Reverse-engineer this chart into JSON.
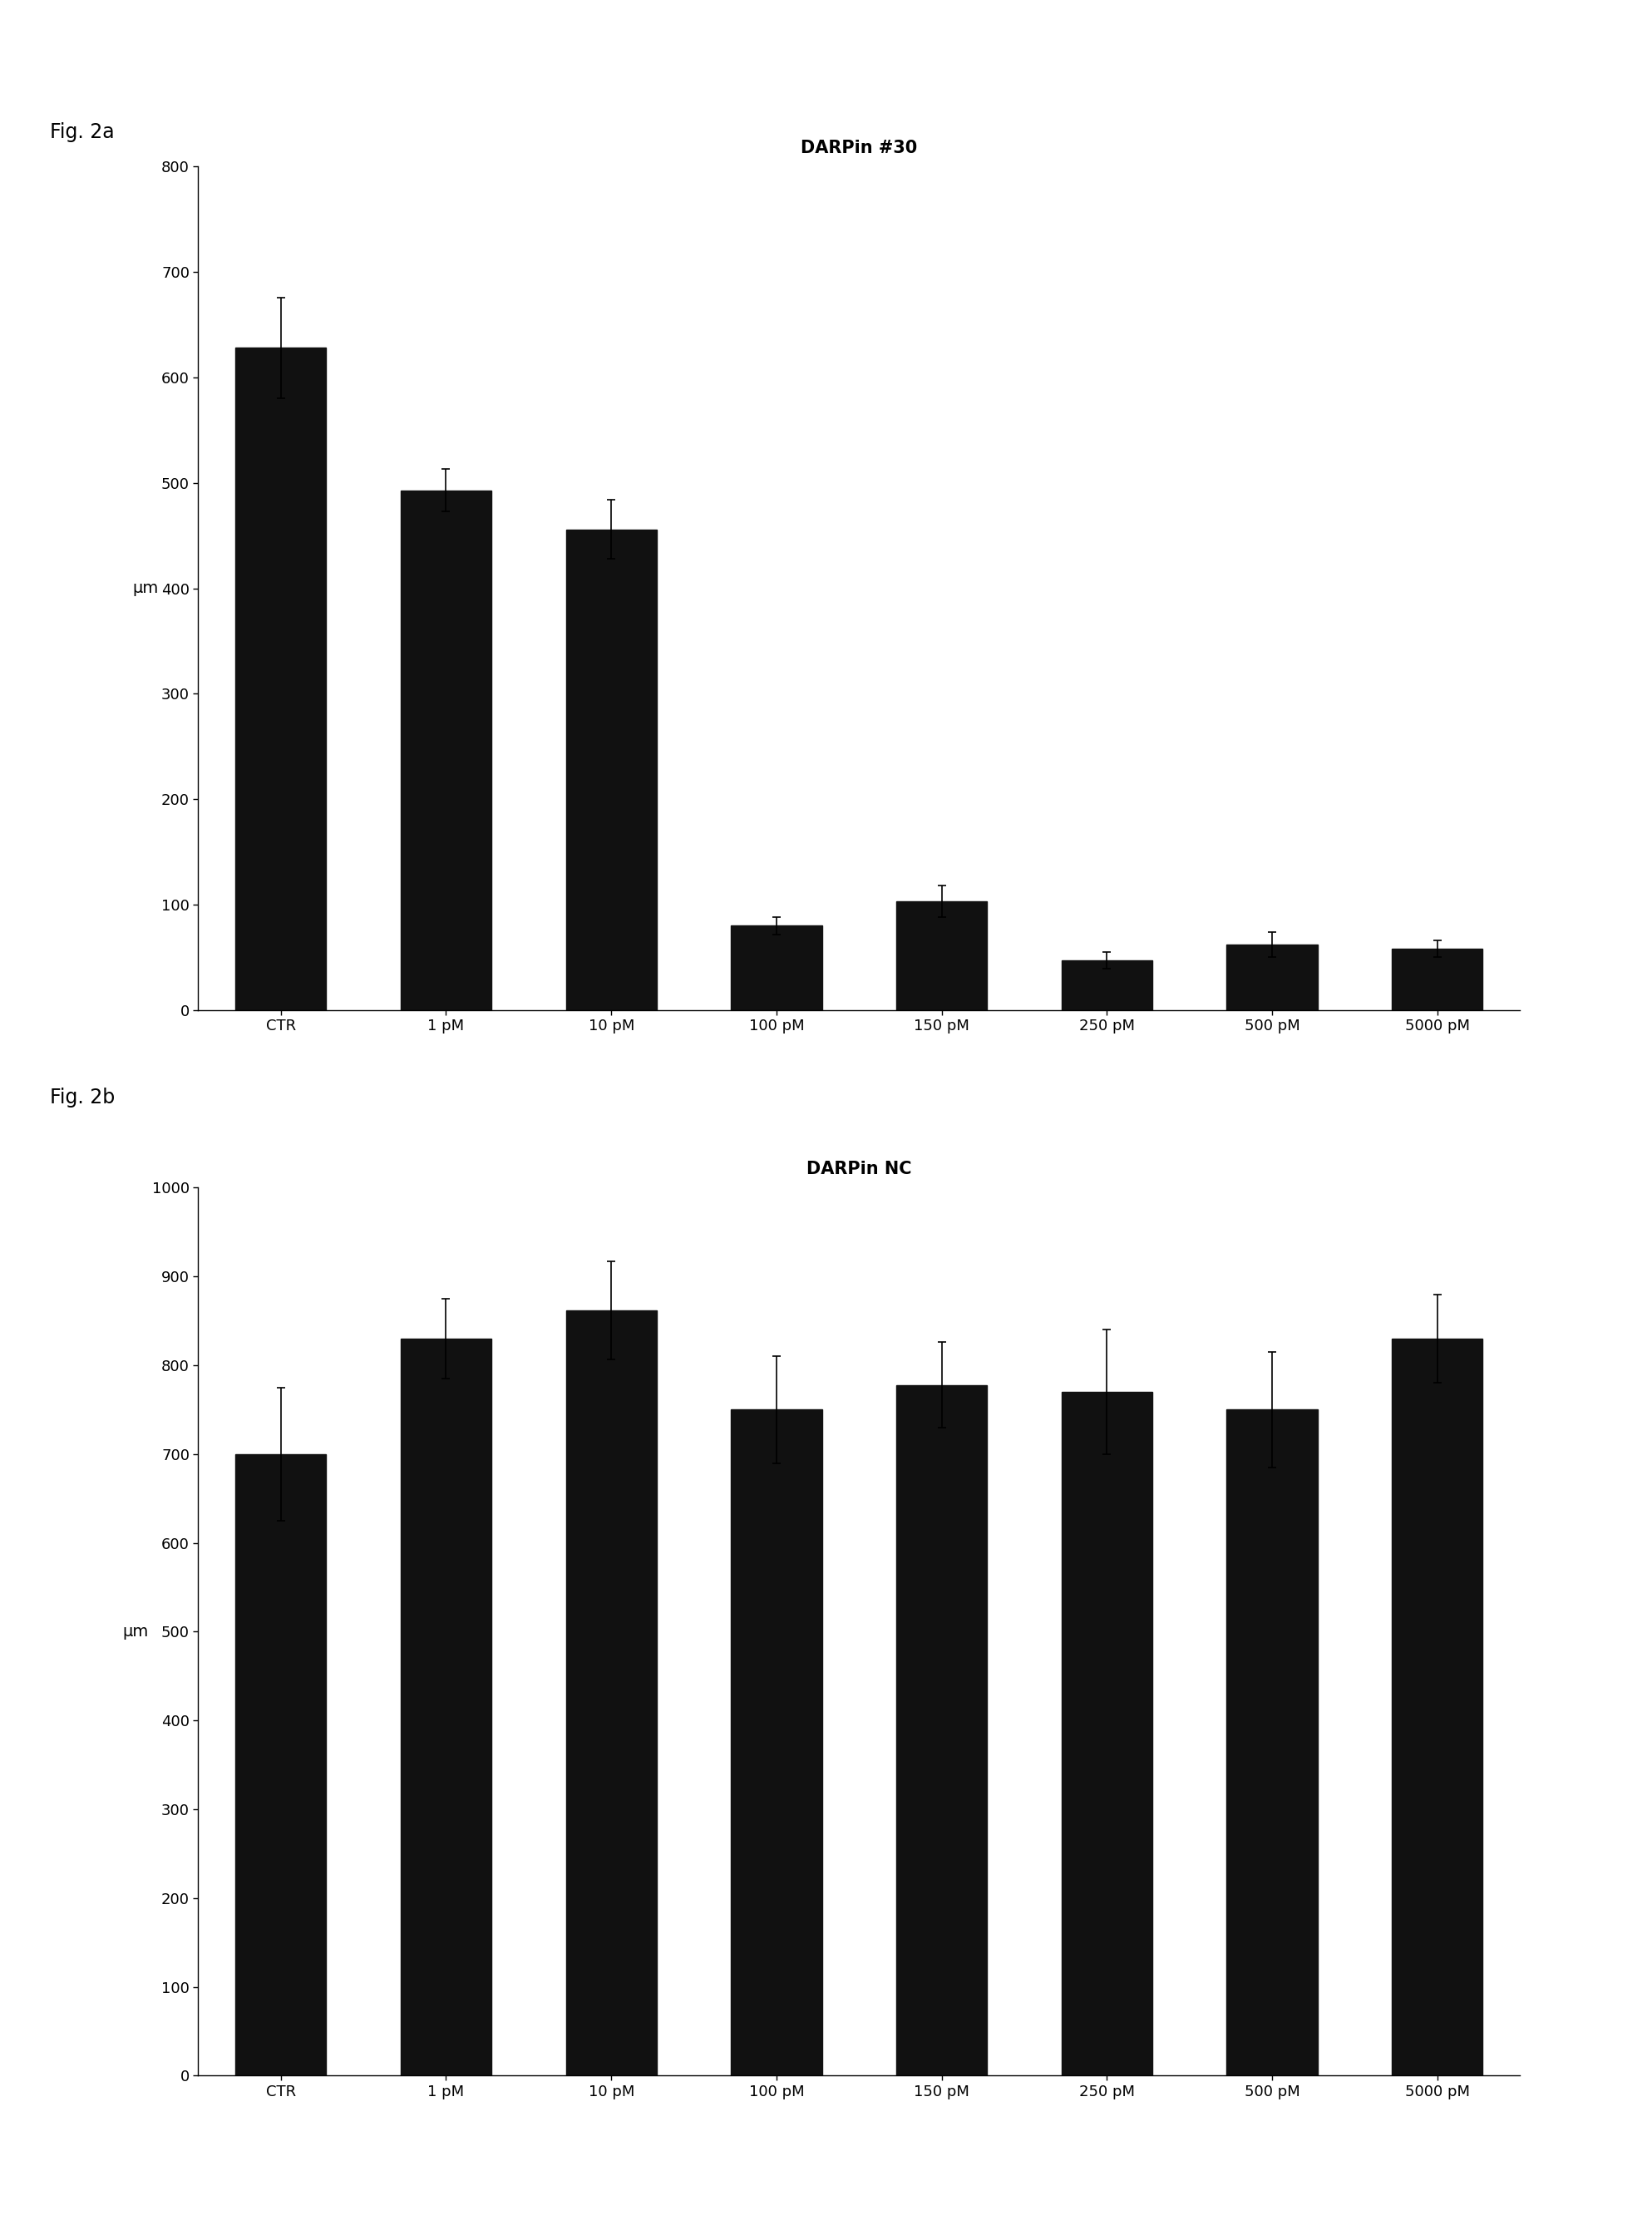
{
  "fig_a_label": "Fig. 2a",
  "fig_b_label": "Fig. 2b",
  "title_a": "DARPin #30",
  "title_b": "DARPin NC",
  "ylabel": "μm",
  "categories": [
    "CTR",
    "1 pM",
    "10 pM",
    "100 pM",
    "150 pM",
    "250 pM",
    "500 pM",
    "5000 pM"
  ],
  "values_a": [
    628,
    493,
    456,
    80,
    103,
    47,
    62,
    58
  ],
  "errors_a": [
    48,
    20,
    28,
    8,
    15,
    8,
    12,
    8
  ],
  "ylim_a": [
    0,
    800
  ],
  "yticks_a": [
    0,
    100,
    200,
    300,
    400,
    500,
    600,
    700,
    800
  ],
  "values_b": [
    700,
    830,
    862,
    750,
    778,
    770,
    750,
    830
  ],
  "errors_b": [
    75,
    45,
    55,
    60,
    48,
    70,
    65,
    50
  ],
  "ylim_b": [
    0,
    1000
  ],
  "yticks_b": [
    0,
    100,
    200,
    300,
    400,
    500,
    600,
    700,
    800,
    900,
    1000
  ],
  "bar_color": "#111111",
  "background_color": "#ffffff",
  "title_fontsize": 15,
  "label_fontsize": 14,
  "tick_fontsize": 13,
  "fig_label_fontsize": 17,
  "bar_width": 0.55
}
